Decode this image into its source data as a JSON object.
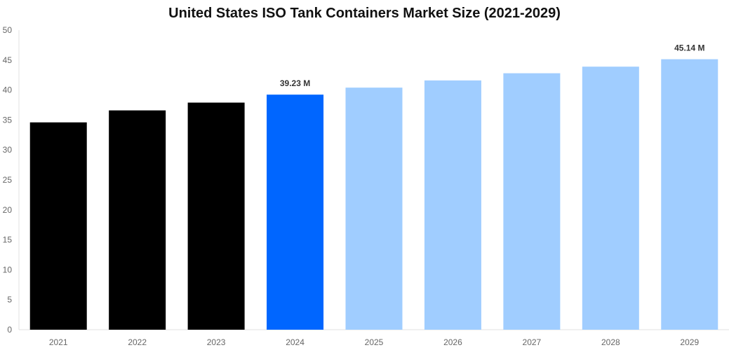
{
  "chart_data": {
    "type": "bar",
    "title": "United States ISO Tank Containers Market Size (2021-2029)",
    "xlabel": "",
    "ylabel": "",
    "ylim": [
      0,
      50
    ],
    "yticks": [
      0,
      5,
      10,
      15,
      20,
      25,
      30,
      35,
      40,
      45,
      50
    ],
    "grid": false,
    "categories": [
      "2021",
      "2022",
      "2023",
      "2024",
      "2025",
      "2026",
      "2027",
      "2028",
      "2029"
    ],
    "values": [
      34.6,
      36.6,
      37.9,
      39.23,
      40.4,
      41.6,
      42.8,
      43.9,
      45.14
    ],
    "bar_colors": [
      "#000000",
      "#000000",
      "#000000",
      "#0066ff",
      "#a0cdff",
      "#a0cdff",
      "#a0cdff",
      "#a0cdff",
      "#a0cdff"
    ],
    "data_labels": [
      null,
      null,
      null,
      "39.23 M",
      null,
      null,
      null,
      null,
      "45.14 M"
    ]
  }
}
